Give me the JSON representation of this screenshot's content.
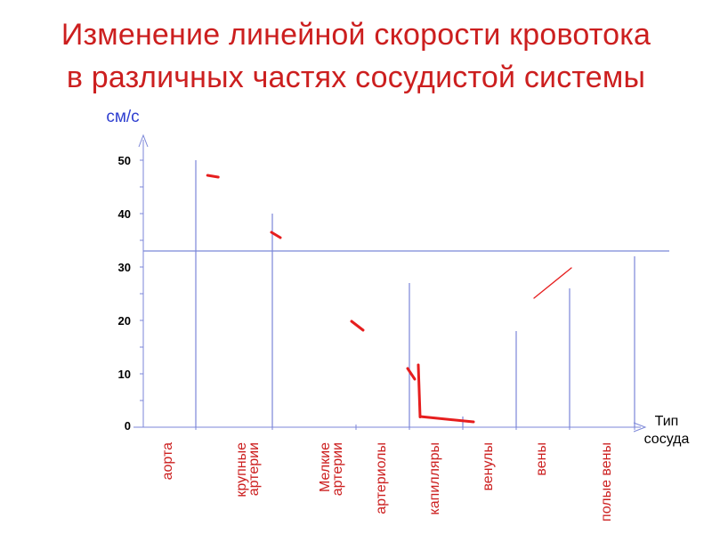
{
  "title": {
    "line1": "Изменение линейной скорости кровотока",
    "line2": "в различных частях сосудистой системы"
  },
  "chart_data": {
    "type": "line",
    "ylabel": "см/с",
    "xlabel": [
      "Тип",
      "сосуда"
    ],
    "yticks": [
      0,
      10,
      20,
      30,
      40,
      50
    ],
    "ylim": [
      0,
      50
    ],
    "reference_line": 33,
    "categories": [
      [
        "аорта"
      ],
      [
        "крупные",
        "артерии"
      ],
      [
        "Мелкие",
        "артерии"
      ],
      [
        "артериолы"
      ],
      [
        "капилляры"
      ],
      [
        "венулы"
      ],
      [
        "вены"
      ],
      [
        "полые вены"
      ]
    ],
    "bar_heights": [
      50,
      40,
      null,
      27,
      2,
      18,
      26,
      32
    ],
    "velocity_path": [
      {
        "x": 0.2,
        "y": 47
      },
      {
        "x": 1.0,
        "y": 36
      },
      {
        "x": 2.0,
        "y": 19
      },
      {
        "x": 3.0,
        "y": 10
      },
      {
        "x": 3.2,
        "y": 2
      },
      {
        "x": 4.2,
        "y": 1
      },
      {
        "x": 5.5,
        "y": 27.5
      }
    ],
    "colors": {
      "axis": "#7b86d8",
      "unit": "#2f3fd0",
      "curve": "#e61e1e",
      "category": "#cc1f1f",
      "title": "#cc1f1f"
    }
  }
}
